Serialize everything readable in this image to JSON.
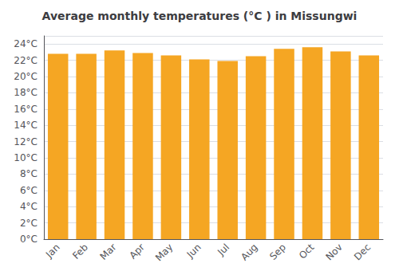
{
  "chart_data": {
    "type": "bar",
    "title": "Average monthly temperatures (°C ) in Missungwi",
    "categories": [
      "Jan",
      "Feb",
      "Mar",
      "Apr",
      "May",
      "Jun",
      "Jul",
      "Aug",
      "Sep",
      "Oct",
      "Nov",
      "Dec"
    ],
    "values": [
      22.8,
      22.8,
      23.2,
      22.9,
      22.6,
      22.1,
      21.9,
      22.5,
      23.4,
      23.6,
      23.1,
      22.6
    ],
    "color": "#F5A623",
    "ylim": [
      0,
      25
    ],
    "yticks": [
      {
        "value": 0,
        "label": "0°C"
      },
      {
        "value": 2,
        "label": "2°C"
      },
      {
        "value": 4,
        "label": "4°C"
      },
      {
        "value": 6,
        "label": "6°C"
      },
      {
        "value": 8,
        "label": "8°C"
      },
      {
        "value": 10,
        "label": "10°C"
      },
      {
        "value": 12,
        "label": "12°C"
      },
      {
        "value": 14,
        "label": "14°C"
      },
      {
        "value": 16,
        "label": "16°C"
      },
      {
        "value": 18,
        "label": "18°C"
      },
      {
        "value": 20,
        "label": "20°C"
      },
      {
        "value": 22,
        "label": "22°C"
      },
      {
        "value": 24,
        "label": "24°C"
      }
    ],
    "grid": true
  }
}
